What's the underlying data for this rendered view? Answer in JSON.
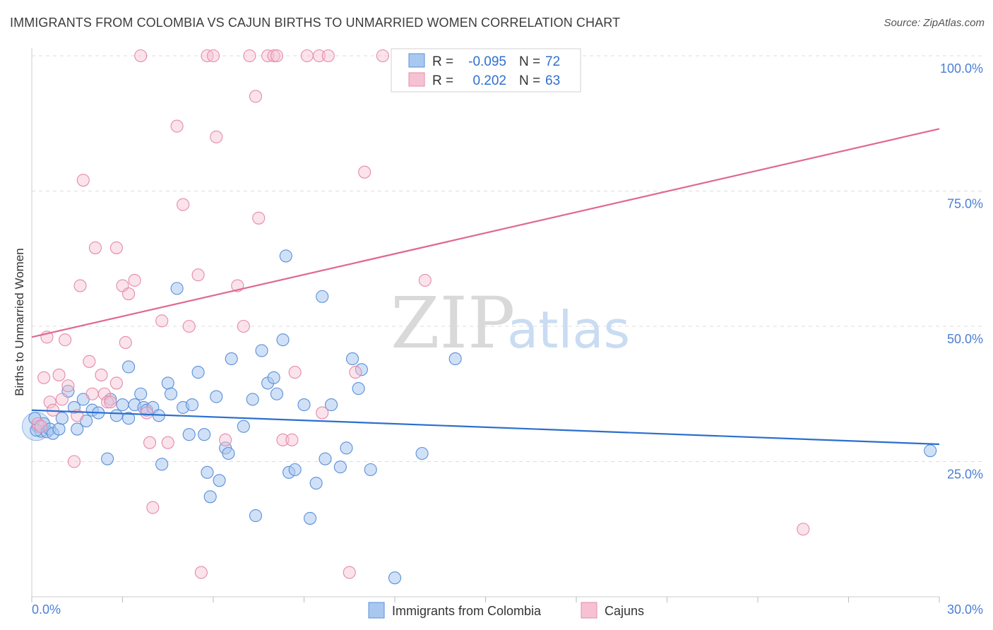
{
  "title": "IMMIGRANTS FROM COLOMBIA VS CAJUN BIRTHS TO UNMARRIED WOMEN CORRELATION CHART",
  "source": "Source: ZipAtlas.com",
  "watermark": {
    "zip": "ZIP",
    "atlas": "atlas"
  },
  "colors": {
    "blue_fill": "#a9c8f0",
    "blue_stroke": "#5b8fd9",
    "blue_line": "#2a6fce",
    "pink_fill": "#f6c2d3",
    "pink_stroke": "#e58aa8",
    "pink_line": "#e0688f",
    "axis_text": "#4a7fd6",
    "grid": "#dddddd"
  },
  "legend": {
    "row1": {
      "r_label": "R =",
      "r_value": "-0.095",
      "n_label": "N =",
      "n_value": "72"
    },
    "row2": {
      "r_label": "R =",
      "r_value": "0.202",
      "n_label": "N =",
      "n_value": "63"
    }
  },
  "chart_data": {
    "type": "scatter",
    "title": "IMMIGRANTS FROM COLOMBIA VS CAJUN BIRTHS TO UNMARRIED WOMEN CORRELATION CHART",
    "xlabel": "",
    "ylabel": "Births to Unmarried Women",
    "xlim": [
      0,
      30
    ],
    "ylim": [
      0,
      100
    ],
    "x_tick_labels": [
      "0.0%",
      "30.0%"
    ],
    "y_ticks": [
      25,
      50,
      75,
      100
    ],
    "y_tick_labels": [
      "25.0%",
      "50.0%",
      "75.0%",
      "100.0%"
    ],
    "legend_position": "bottom-center",
    "series": [
      {
        "name": "Immigrants from Colombia",
        "color": "blue",
        "R": -0.095,
        "N": 72,
        "trend": {
          "x": [
            0,
            30
          ],
          "y": [
            34.5,
            28.2
          ]
        },
        "points": [
          [
            0.2,
            31.5
          ],
          [
            0.3,
            30.6
          ],
          [
            0.4,
            32.0
          ],
          [
            0.5,
            30.5
          ],
          [
            0.6,
            31.0
          ],
          [
            0.7,
            30.2
          ],
          [
            0.9,
            31.0
          ],
          [
            1.0,
            33.0
          ],
          [
            1.2,
            38.0
          ],
          [
            1.4,
            35.0
          ],
          [
            1.5,
            31.0
          ],
          [
            1.7,
            36.5
          ],
          [
            1.8,
            32.5
          ],
          [
            2.0,
            34.5
          ],
          [
            2.2,
            34.0
          ],
          [
            2.5,
            25.5
          ],
          [
            2.6,
            36.5
          ],
          [
            2.8,
            33.5
          ],
          [
            3.0,
            35.5
          ],
          [
            3.2,
            33.0
          ],
          [
            3.2,
            42.5
          ],
          [
            3.4,
            35.5
          ],
          [
            3.6,
            37.5
          ],
          [
            3.7,
            35.0
          ],
          [
            3.8,
            34.5
          ],
          [
            4.0,
            35.0
          ],
          [
            4.2,
            33.5
          ],
          [
            4.3,
            24.5
          ],
          [
            4.5,
            39.5
          ],
          [
            4.6,
            37.5
          ],
          [
            4.8,
            57.0
          ],
          [
            5.0,
            35.0
          ],
          [
            5.2,
            30.0
          ],
          [
            5.3,
            35.5
          ],
          [
            5.5,
            41.5
          ],
          [
            5.7,
            30.0
          ],
          [
            5.8,
            23.0
          ],
          [
            5.9,
            18.5
          ],
          [
            6.2,
            21.5
          ],
          [
            6.1,
            37.0
          ],
          [
            6.4,
            27.5
          ],
          [
            6.5,
            26.5
          ],
          [
            6.6,
            44.0
          ],
          [
            7.0,
            31.5
          ],
          [
            7.3,
            36.5
          ],
          [
            7.4,
            15.0
          ],
          [
            7.6,
            45.5
          ],
          [
            7.8,
            39.5
          ],
          [
            8.0,
            40.5
          ],
          [
            8.1,
            37.5
          ],
          [
            8.3,
            47.5
          ],
          [
            8.4,
            63.0
          ],
          [
            8.5,
            23.0
          ],
          [
            8.7,
            23.5
          ],
          [
            9.0,
            35.5
          ],
          [
            9.2,
            14.5
          ],
          [
            9.4,
            21.0
          ],
          [
            9.6,
            55.5
          ],
          [
            9.7,
            25.5
          ],
          [
            9.9,
            35.5
          ],
          [
            10.2,
            24.0
          ],
          [
            10.4,
            27.5
          ],
          [
            10.6,
            44.0
          ],
          [
            10.8,
            38.5
          ],
          [
            10.9,
            42.0
          ],
          [
            11.2,
            23.5
          ],
          [
            12.0,
            3.5
          ],
          [
            12.9,
            26.5
          ],
          [
            14.0,
            44.0
          ],
          [
            29.7,
            27.0
          ],
          [
            0.1,
            33.0
          ],
          [
            0.15,
            30.8
          ]
        ]
      },
      {
        "name": "Cajuns",
        "color": "pink",
        "R": 0.202,
        "N": 63,
        "trend": {
          "x": [
            0,
            30
          ],
          "y": [
            48.0,
            86.5
          ]
        },
        "points": [
          [
            0.2,
            32.0
          ],
          [
            0.4,
            40.5
          ],
          [
            0.5,
            48.0
          ],
          [
            0.6,
            36.0
          ],
          [
            0.7,
            34.5
          ],
          [
            0.9,
            41.0
          ],
          [
            1.0,
            36.5
          ],
          [
            1.1,
            47.5
          ],
          [
            1.2,
            39.0
          ],
          [
            1.4,
            25.0
          ],
          [
            1.5,
            33.5
          ],
          [
            1.6,
            57.5
          ],
          [
            1.7,
            77.0
          ],
          [
            1.9,
            43.5
          ],
          [
            2.0,
            37.5
          ],
          [
            2.1,
            64.5
          ],
          [
            2.3,
            41.0
          ],
          [
            2.4,
            37.5
          ],
          [
            2.5,
            36.0
          ],
          [
            2.8,
            39.5
          ],
          [
            2.8,
            64.5
          ],
          [
            3.0,
            57.5
          ],
          [
            3.1,
            47.0
          ],
          [
            3.2,
            56.0
          ],
          [
            3.4,
            58.5
          ],
          [
            3.6,
            100.0
          ],
          [
            3.8,
            34.0
          ],
          [
            3.9,
            28.5
          ],
          [
            4.0,
            16.5
          ],
          [
            4.3,
            51.0
          ],
          [
            4.5,
            28.5
          ],
          [
            4.8,
            87.0
          ],
          [
            5.0,
            72.5
          ],
          [
            5.2,
            50.0
          ],
          [
            5.5,
            59.5
          ],
          [
            5.6,
            4.5
          ],
          [
            5.8,
            100.0
          ],
          [
            6.0,
            100.0
          ],
          [
            6.1,
            85.0
          ],
          [
            6.4,
            29.0
          ],
          [
            6.8,
            57.5
          ],
          [
            7.0,
            50.0
          ],
          [
            7.2,
            100.0
          ],
          [
            7.4,
            92.5
          ],
          [
            7.5,
            70.0
          ],
          [
            7.8,
            100.0
          ],
          [
            8.0,
            100.0
          ],
          [
            8.1,
            100.0
          ],
          [
            8.3,
            29.0
          ],
          [
            8.6,
            29.0
          ],
          [
            8.7,
            41.5
          ],
          [
            9.1,
            100.0
          ],
          [
            9.5,
            100.0
          ],
          [
            9.6,
            34.0
          ],
          [
            9.8,
            100.0
          ],
          [
            10.5,
            4.5
          ],
          [
            10.7,
            41.5
          ],
          [
            11.0,
            78.5
          ],
          [
            11.6,
            100.0
          ],
          [
            13.0,
            58.5
          ],
          [
            25.5,
            12.5
          ],
          [
            0.3,
            31.5
          ],
          [
            2.6,
            36.0
          ]
        ]
      }
    ]
  }
}
